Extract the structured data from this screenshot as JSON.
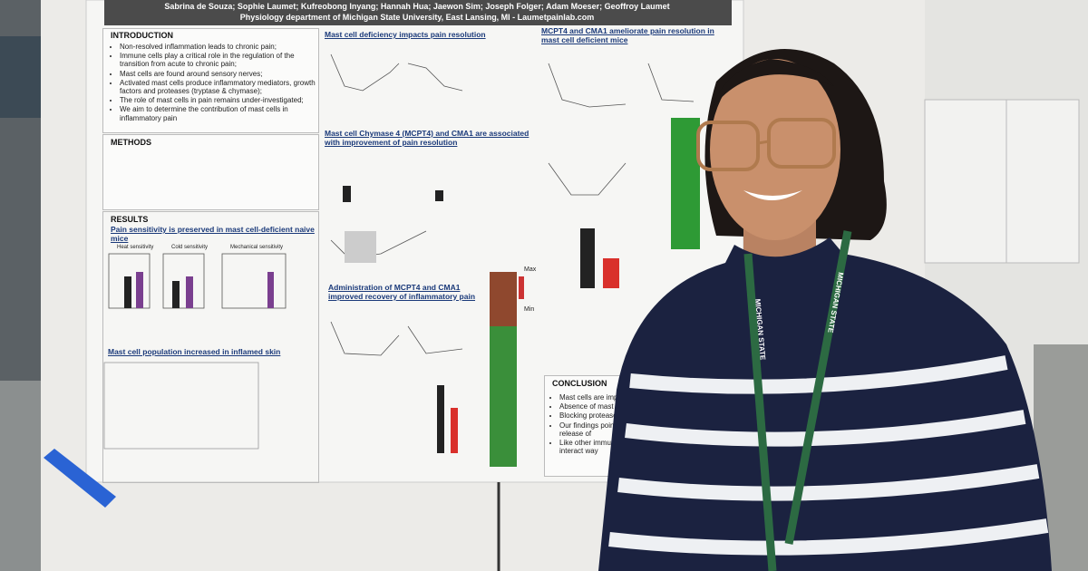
{
  "poster": {
    "authors": "Sabrina de Souza; Sophie Laumet; Kufreobong Inyang; Hannah Hua; Jaewon Sim; Joseph Folger; Adam Moeser; Geoffroy Laumet",
    "affiliation": "Physiology department of Michigan State University, East Lansing, MI - Laumetpainlab.com",
    "introduction": {
      "title": "INTRODUCTION",
      "bullets": [
        "Non-resolved inflammation leads to chronic pain;",
        "Immune cells play a critical role in the regulation of the transition from acute to chronic pain;",
        "Mast cells are found around sensory nerves;",
        "Activated mast cells produce inflammatory mediators, growth factors and proteases (tryptase & chymase);",
        "The role of mast cells in pain remains under-investigated;",
        "We aim to determine the contribution of mast cells in inflammatory pain"
      ]
    },
    "methods": {
      "title": "METHODS"
    },
    "results": {
      "title": "RESULTS",
      "subtitles": [
        "Pain sensitivity is preserved in mast cell-deficient naive mice",
        "Mast cell population increased in inflamed skin"
      ],
      "chart_labels": [
        "Heat sensitivity",
        "Cold sensitivity",
        "Mechanical sensitivity"
      ]
    },
    "middle_sections": [
      "Mast cell deficiency impacts pain resolution",
      "Mast cell Chymase 4 (MCPT4) and CMA1 are associated with improvement of pain resolution",
      "Administration of MCPT4 and CMA1 improved recovery of inflammatory pain"
    ],
    "heatmap_labels": [
      "Max",
      "Min"
    ],
    "right_section": "MCPT4 and CMA1 ameliorate pain resolution in mast cell deficient mice",
    "conclusion": {
      "title": "CONCLUSION",
      "bullets": [
        "Mast cells are important for",
        "Absence of mast cells leads",
        "Blocking proteases impaire",
        "Our findings point toward mediated by the release of",
        "Like other immune cells phenotype and can interact way"
      ]
    }
  },
  "lanyard": "MICHIGAN STATE"
}
